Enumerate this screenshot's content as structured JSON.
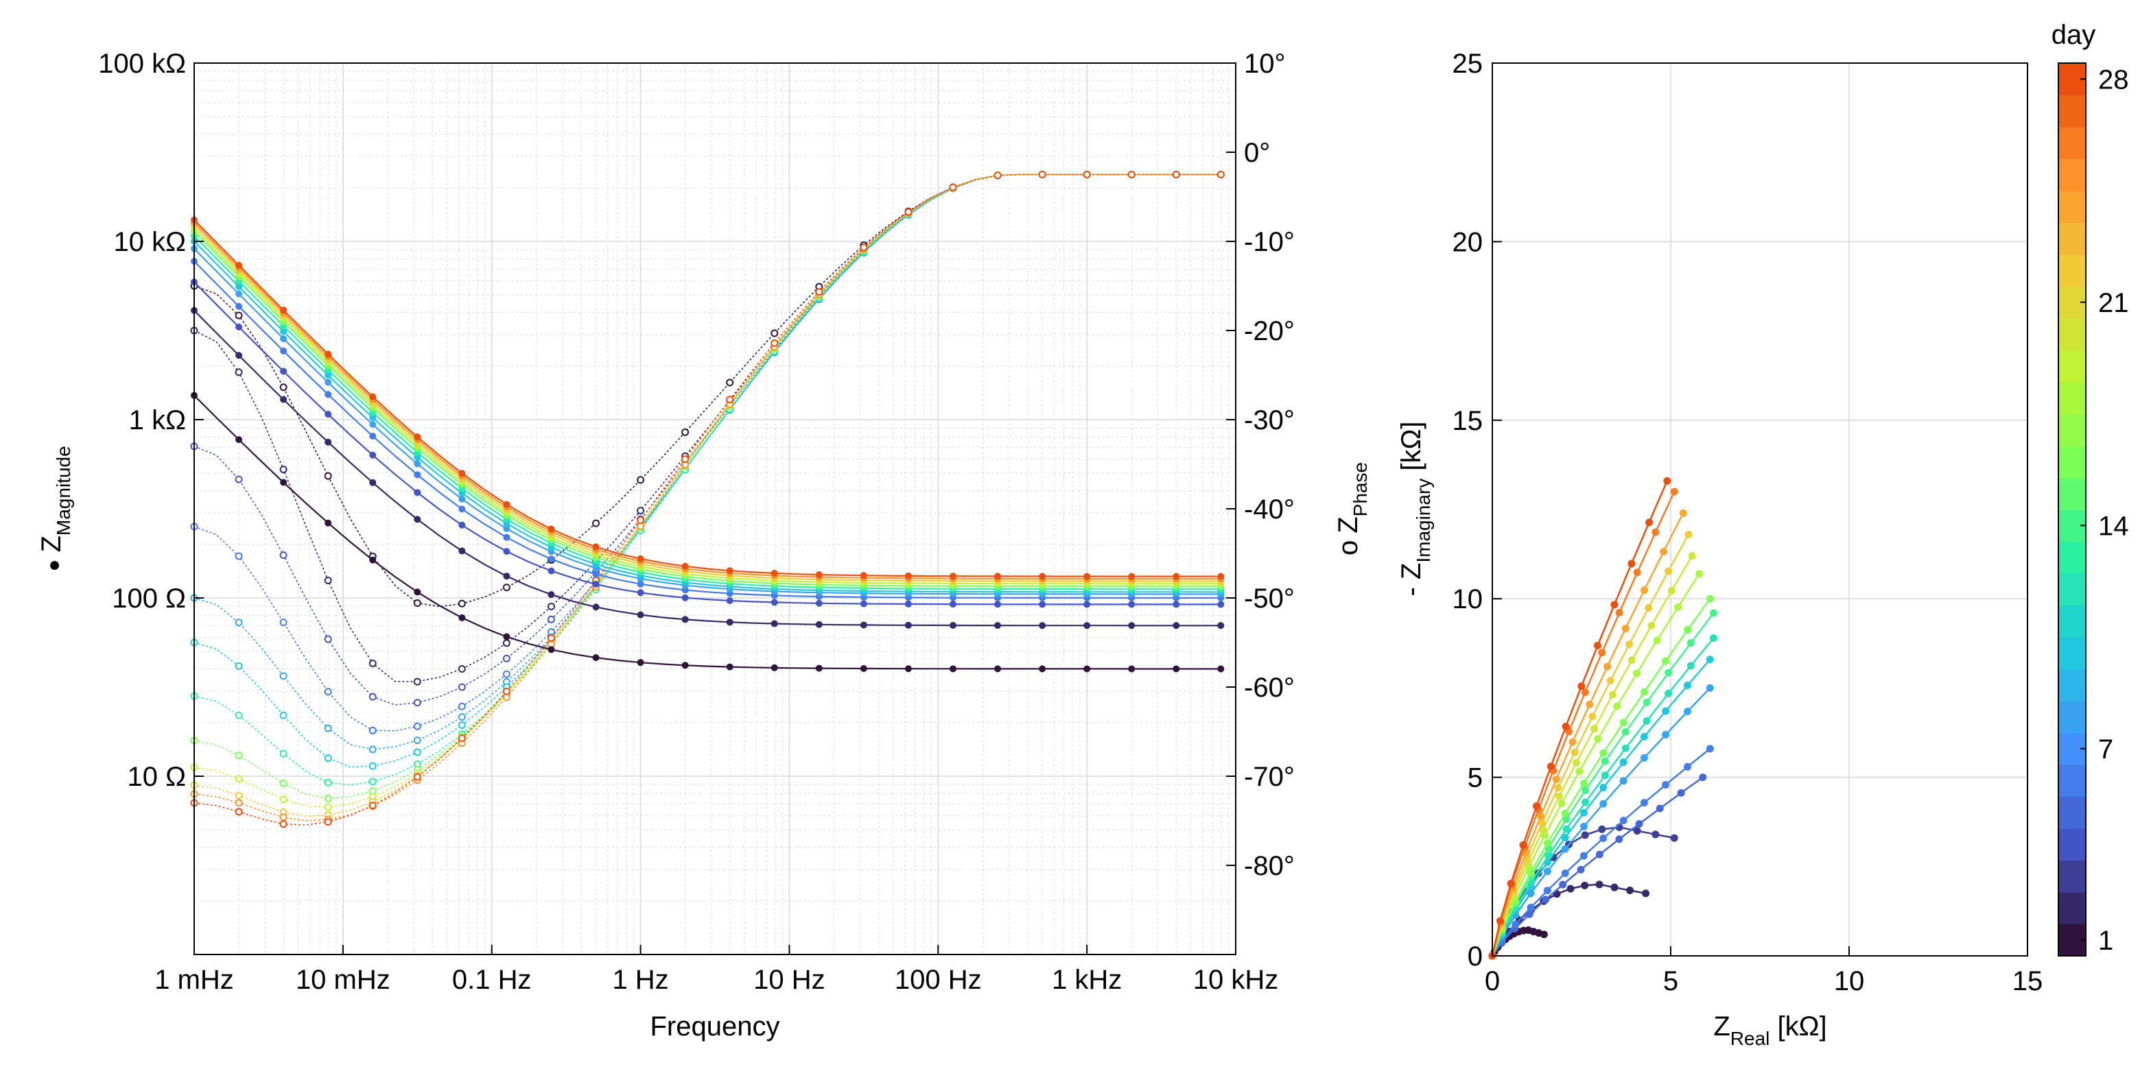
{
  "figure_labels": {
    "bode_y_left": "Z",
    "bode_y_left_sub": "Magnitude",
    "bode_y_left_marker": "●",
    "bode_y_right": "Z",
    "bode_y_right_sub": "Phase",
    "bode_y_right_marker": "o",
    "bode_x": "Frequency",
    "nyq_x_main": "Z",
    "nyq_x_sub": "Real",
    "nyq_x_unit": " [kΩ]",
    "nyq_y_prefix": "- Z",
    "nyq_y_sub": "Imaginary",
    "nyq_y_unit": " [kΩ]",
    "colorbar_title": "day"
  },
  "colors": {
    "colormap": [
      "#30123b",
      "#4454c4",
      "#4490fe",
      "#1fc8de",
      "#29efa2",
      "#7dff56",
      "#c1f334",
      "#f1ca3a",
      "#fe922a",
      "#ea4f0d"
    ],
    "grid": "#d9d9d9",
    "axis": "#000000"
  },
  "chart_data": [
    {
      "type": "line",
      "title": "",
      "xscale": "log",
      "xlabel": "Frequency",
      "xlim": [
        0.001,
        10000
      ],
      "x_ticks": [
        0.001,
        0.01,
        0.1,
        1,
        10,
        100,
        1000,
        10000
      ],
      "x_tick_labels": [
        "1 mHz",
        "10 mHz",
        "0.1 Hz",
        "1 Hz",
        "10 Hz",
        "100 Hz",
        "1 kHz",
        "10 kHz"
      ],
      "ylabel_left": "Z Magnitude (Ω)",
      "yscale_left": "log",
      "ylim_left": [
        1,
        100000
      ],
      "y_ticks_left": [
        10,
        100,
        1000,
        10000,
        100000
      ],
      "y_tick_labels_left": [
        "10 Ω",
        "100 Ω",
        "1 kΩ",
        "10 kΩ",
        "100 kΩ"
      ],
      "ylabel_right": "Z Phase (deg)",
      "ylim_right": [
        -90,
        10
      ],
      "y_ticks_right": [
        10,
        0,
        -10,
        -20,
        -30,
        -40,
        -50,
        -60,
        -70,
        -80
      ],
      "y_tick_labels_right": [
        "10°",
        "0°",
        "-10°",
        "-20°",
        "-30°",
        "-40°",
        "-50°",
        "-60°",
        "-70°",
        "-80°"
      ],
      "grid": true,
      "color_by": "day",
      "magnitude_markers": "filled",
      "phase_markers": "open",
      "series": [
        {
          "day": 1,
          "mag_low_f_ohm": 1500,
          "mag_high_f_ohm": 40,
          "phase_min_deg": -51,
          "phase_min_freq_hz": 0.04,
          "phase_low_f_deg": -15
        },
        {
          "day": 2,
          "mag_low_f_ohm": 4500,
          "mag_high_f_ohm": 70,
          "phase_min_deg": -59.5,
          "phase_min_freq_hz": 0.025,
          "phase_low_f_deg": -20
        },
        {
          "day": 4,
          "mag_low_f_ohm": 6500,
          "mag_high_f_ohm": 92,
          "phase_min_deg": -62,
          "phase_min_freq_hz": 0.022,
          "phase_low_f_deg": -33
        },
        {
          "day": 6,
          "mag_low_f_ohm": 8500,
          "mag_high_f_ohm": 100,
          "phase_min_deg": -65,
          "phase_min_freq_hz": 0.018,
          "phase_low_f_deg": -42
        },
        {
          "day": 8,
          "mag_low_f_ohm": 10000,
          "mag_high_f_ohm": 105,
          "phase_min_deg": -67,
          "phase_min_freq_hz": 0.015,
          "phase_low_f_deg": -50
        },
        {
          "day": 10,
          "mag_low_f_ohm": 11000,
          "mag_high_f_ohm": 108,
          "phase_min_deg": -69,
          "phase_min_freq_hz": 0.012,
          "phase_low_f_deg": -55
        },
        {
          "day": 13,
          "mag_low_f_ohm": 11800,
          "mag_high_f_ohm": 112,
          "phase_min_deg": -71,
          "phase_min_freq_hz": 0.01,
          "phase_low_f_deg": -61
        },
        {
          "day": 16,
          "mag_low_f_ohm": 12500,
          "mag_high_f_ohm": 116,
          "phase_min_deg": -72.5,
          "phase_min_freq_hz": 0.008,
          "phase_low_f_deg": -66
        },
        {
          "day": 19,
          "mag_low_f_ohm": 13000,
          "mag_high_f_ohm": 120,
          "phase_min_deg": -73.5,
          "phase_min_freq_hz": 0.007,
          "phase_low_f_deg": -69
        },
        {
          "day": 22,
          "mag_low_f_ohm": 13500,
          "mag_high_f_ohm": 124,
          "phase_min_deg": -74.5,
          "phase_min_freq_hz": 0.006,
          "phase_low_f_deg": -71
        },
        {
          "day": 25,
          "mag_low_f_ohm": 14000,
          "mag_high_f_ohm": 128,
          "phase_min_deg": -75,
          "phase_min_freq_hz": 0.006,
          "phase_low_f_deg": -72
        },
        {
          "day": 28,
          "mag_low_f_ohm": 14500,
          "mag_high_f_ohm": 132,
          "phase_min_deg": -75.5,
          "phase_min_freq_hz": 0.005,
          "phase_low_f_deg": -73
        }
      ]
    },
    {
      "type": "scatter",
      "title": "",
      "xlabel": "Z_Real [kΩ]",
      "ylabel": "- Z_Imaginary [kΩ]",
      "xlim": [
        0,
        15
      ],
      "ylim": [
        0,
        25
      ],
      "x_ticks": [
        0,
        5,
        10,
        15
      ],
      "y_ticks": [
        0,
        5,
        10,
        15,
        20,
        25
      ],
      "grid": true,
      "markers_connected": true,
      "series": [
        {
          "day": 1,
          "end_re": 1.45,
          "end_im": 0.6,
          "peak_im": 0.72
        },
        {
          "day": 2,
          "end_re": 4.3,
          "end_im": 1.75,
          "peak_im": 2.0
        },
        {
          "day": 3,
          "end_re": 5.1,
          "end_im": 3.3,
          "peak_im": 3.6
        },
        {
          "day": 5,
          "end_re": 5.9,
          "end_im": 5.0,
          "peak_im": 5.0
        },
        {
          "day": 6,
          "end_re": 6.1,
          "end_im": 5.8,
          "peak_im": 5.8
        },
        {
          "day": 8,
          "end_re": 6.1,
          "end_im": 7.5,
          "peak_im": 7.5
        },
        {
          "day": 10,
          "end_re": 6.1,
          "end_im": 8.3,
          "peak_im": 8.3
        },
        {
          "day": 12,
          "end_re": 6.2,
          "end_im": 8.9,
          "peak_im": 8.9
        },
        {
          "day": 14,
          "end_re": 6.2,
          "end_im": 9.6,
          "peak_im": 9.6
        },
        {
          "day": 16,
          "end_re": 6.1,
          "end_im": 10.0,
          "peak_im": 10.0
        },
        {
          "day": 18,
          "end_re": 5.8,
          "end_im": 10.7,
          "peak_im": 10.7
        },
        {
          "day": 20,
          "end_re": 5.6,
          "end_im": 11.2,
          "peak_im": 11.2
        },
        {
          "day": 22,
          "end_re": 5.5,
          "end_im": 11.8,
          "peak_im": 11.8
        },
        {
          "day": 24,
          "end_re": 5.35,
          "end_im": 12.4,
          "peak_im": 12.4
        },
        {
          "day": 26,
          "end_re": 5.1,
          "end_im": 13.0,
          "peak_im": 13.0
        },
        {
          "day": 28,
          "end_re": 4.9,
          "end_im": 13.3,
          "peak_im": 13.3
        }
      ]
    },
    {
      "type": "colorbar",
      "title": "day",
      "range": [
        1,
        28
      ],
      "ticks": [
        1,
        7,
        14,
        21,
        28
      ]
    }
  ]
}
